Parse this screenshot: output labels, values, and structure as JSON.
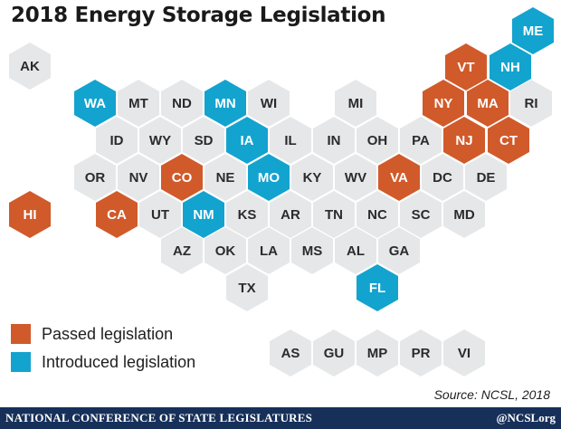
{
  "title": "2018 Energy Storage Legislation",
  "legend": {
    "passed_label": "Passed legislation",
    "introduced_label": "Introduced legislation"
  },
  "colors": {
    "passed": "#d15a2a",
    "introduced": "#13a3cf",
    "none": "#e6e7e8"
  },
  "states": [
    {
      "abbr": "ME",
      "status": "introduced"
    },
    {
      "abbr": "AK",
      "status": "none"
    },
    {
      "abbr": "VT",
      "status": "passed"
    },
    {
      "abbr": "NH",
      "status": "introduced"
    },
    {
      "abbr": "WA",
      "status": "introduced"
    },
    {
      "abbr": "MT",
      "status": "none"
    },
    {
      "abbr": "ND",
      "status": "none"
    },
    {
      "abbr": "MN",
      "status": "introduced"
    },
    {
      "abbr": "WI",
      "status": "none"
    },
    {
      "abbr": "MI",
      "status": "none"
    },
    {
      "abbr": "NY",
      "status": "passed"
    },
    {
      "abbr": "MA",
      "status": "passed"
    },
    {
      "abbr": "RI",
      "status": "none"
    },
    {
      "abbr": "ID",
      "status": "none"
    },
    {
      "abbr": "WY",
      "status": "none"
    },
    {
      "abbr": "SD",
      "status": "none"
    },
    {
      "abbr": "IA",
      "status": "introduced"
    },
    {
      "abbr": "IL",
      "status": "none"
    },
    {
      "abbr": "IN",
      "status": "none"
    },
    {
      "abbr": "OH",
      "status": "none"
    },
    {
      "abbr": "PA",
      "status": "none"
    },
    {
      "abbr": "NJ",
      "status": "passed"
    },
    {
      "abbr": "CT",
      "status": "passed"
    },
    {
      "abbr": "OR",
      "status": "none"
    },
    {
      "abbr": "NV",
      "status": "none"
    },
    {
      "abbr": "CO",
      "status": "passed"
    },
    {
      "abbr": "NE",
      "status": "none"
    },
    {
      "abbr": "MO",
      "status": "introduced"
    },
    {
      "abbr": "KY",
      "status": "none"
    },
    {
      "abbr": "WV",
      "status": "none"
    },
    {
      "abbr": "VA",
      "status": "passed"
    },
    {
      "abbr": "DC",
      "status": "none"
    },
    {
      "abbr": "DE",
      "status": "none"
    },
    {
      "abbr": "HI",
      "status": "passed"
    },
    {
      "abbr": "CA",
      "status": "passed"
    },
    {
      "abbr": "UT",
      "status": "none"
    },
    {
      "abbr": "NM",
      "status": "introduced"
    },
    {
      "abbr": "KS",
      "status": "none"
    },
    {
      "abbr": "AR",
      "status": "none"
    },
    {
      "abbr": "TN",
      "status": "none"
    },
    {
      "abbr": "NC",
      "status": "none"
    },
    {
      "abbr": "SC",
      "status": "none"
    },
    {
      "abbr": "MD",
      "status": "none"
    },
    {
      "abbr": "AZ",
      "status": "none"
    },
    {
      "abbr": "OK",
      "status": "none"
    },
    {
      "abbr": "LA",
      "status": "none"
    },
    {
      "abbr": "MS",
      "status": "none"
    },
    {
      "abbr": "AL",
      "status": "none"
    },
    {
      "abbr": "GA",
      "status": "none"
    },
    {
      "abbr": "TX",
      "status": "none"
    },
    {
      "abbr": "FL",
      "status": "introduced"
    },
    {
      "abbr": "AS",
      "status": "none"
    },
    {
      "abbr": "GU",
      "status": "none"
    },
    {
      "abbr": "MP",
      "status": "none"
    },
    {
      "abbr": "PR",
      "status": "none"
    },
    {
      "abbr": "VI",
      "status": "none"
    }
  ],
  "source": "Source:  NCSL, 2018",
  "footer": {
    "org": "NATIONAL CONFERENCE OF STATE LEGISLATURES",
    "handle": "@NCSLorg"
  }
}
